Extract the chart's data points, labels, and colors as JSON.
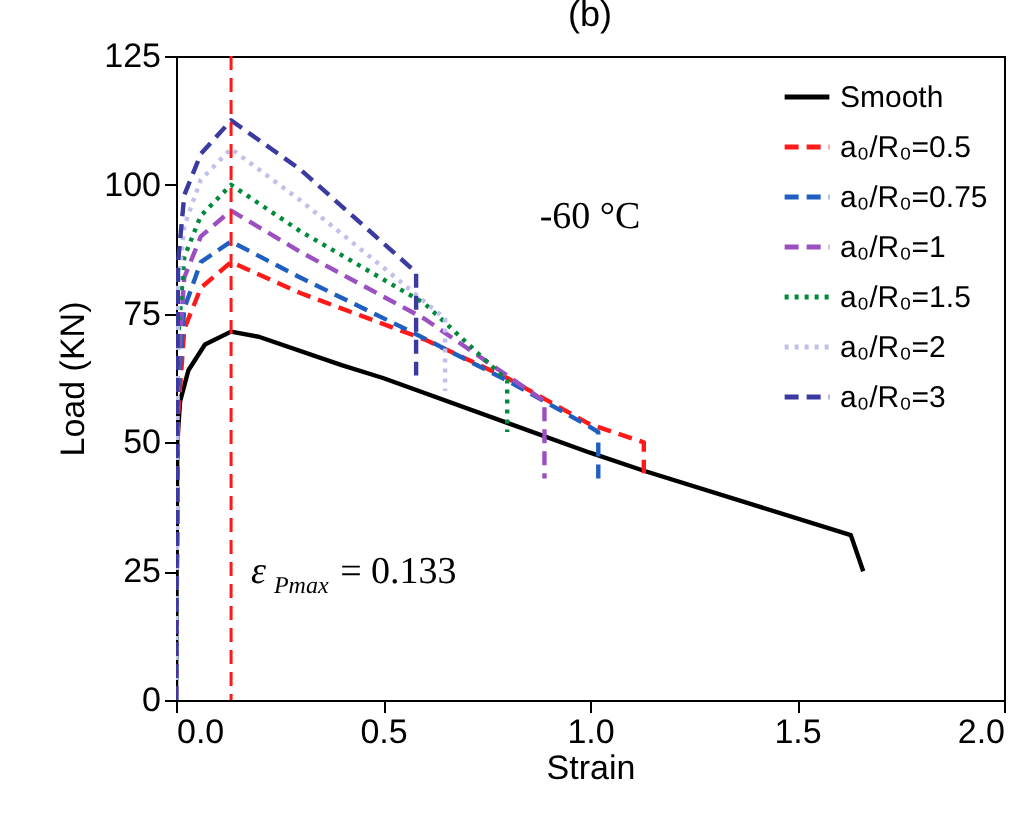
{
  "chart_data": {
    "type": "line",
    "title": "(b)",
    "xlabel": "Strain",
    "ylabel": "Load (KN)",
    "xlim": [
      0,
      2.0
    ],
    "xticks": [
      {
        "value": 0,
        "label": "0.0"
      },
      0.5,
      {
        "value": 1,
        "label": "1.0"
      },
      1.5,
      {
        "value": 2,
        "label": "2.0"
      }
    ],
    "ylim": [
      0,
      125
    ],
    "yticks": [
      0,
      25,
      50,
      75,
      100,
      125
    ],
    "grid": false,
    "legend": "top right",
    "series": [
      {
        "name": "Smooth",
        "color": "#000000",
        "line_style": "solid",
        "x": [
          0,
          0.003,
          0.01,
          0.03,
          0.07,
          0.133,
          0.2,
          0.4,
          0.5,
          1.0,
          1.13,
          1.63,
          1.66
        ],
        "values": [
          0,
          50,
          58,
          64,
          69,
          71.5,
          70.5,
          65,
          62.5,
          48,
          44.5,
          32,
          25
        ]
      },
      {
        "name": "a₀/R₀=0.5",
        "color": "#ff1a1a",
        "line_style": "dashed",
        "x": [
          0,
          0.005,
          0.02,
          0.06,
          0.133,
          0.3,
          0.6,
          0.8,
          1.0,
          1.13,
          1.13
        ],
        "values": [
          0,
          55,
          72,
          80,
          85,
          79,
          70,
          62.5,
          53.5,
          50,
          44
        ]
      },
      {
        "name": "a₀/R₀=0.75",
        "color": "#1f5fbf",
        "line_style": "dashed",
        "x": [
          0,
          0.005,
          0.02,
          0.06,
          0.133,
          0.3,
          0.58,
          0.8,
          1.0,
          1.02,
          1.02
        ],
        "values": [
          0,
          60,
          76,
          85,
          89,
          82,
          71,
          62,
          53,
          52,
          43
        ]
      },
      {
        "name": "a₀/R₀=1",
        "color": "#9b4fc0",
        "line_style": "dashed",
        "x": [
          0,
          0.005,
          0.02,
          0.06,
          0.133,
          0.3,
          0.6,
          0.89,
          0.89
        ],
        "values": [
          0,
          65,
          82,
          90,
          95,
          87,
          74,
          58,
          43
        ]
      },
      {
        "name": "a₀/R₀=1.5",
        "color": "#008a3a",
        "line_style": "dotted",
        "x": [
          0,
          0.005,
          0.02,
          0.06,
          0.133,
          0.3,
          0.6,
          0.8,
          0.8
        ],
        "values": [
          0,
          70,
          86,
          94,
          100,
          91,
          77,
          62,
          52
        ]
      },
      {
        "name": "a₀/R₀=2",
        "color": "#c0c0ea",
        "line_style": "dotted",
        "x": [
          0,
          0.005,
          0.02,
          0.06,
          0.133,
          0.3,
          0.5,
          0.65,
          0.65
        ],
        "values": [
          0,
          80,
          92,
          101,
          107,
          97,
          84,
          74,
          60
        ]
      },
      {
        "name": "a₀/R₀=3",
        "color": "#3a3aa0",
        "line_style": "dashed",
        "x": [
          0,
          0.005,
          0.02,
          0.06,
          0.133,
          0.3,
          0.58,
          0.58
        ],
        "values": [
          0,
          85,
          98,
          106,
          112.5,
          103,
          83,
          63
        ]
      }
    ],
    "ref_lines": [
      {
        "axis": "x",
        "value": 0.133,
        "label": "ε$_{Pmax}$ = 0.133",
        "color": "#ff1a1a",
        "line_style": "dashed"
      }
    ],
    "annotations": [
      "-60 °C"
    ]
  }
}
